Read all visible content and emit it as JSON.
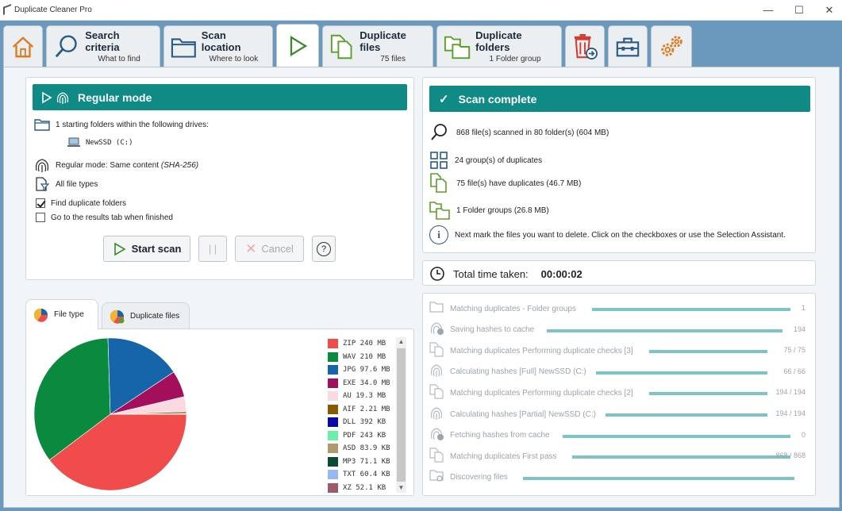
{
  "window": {
    "title": "Duplicate Cleaner Pro",
    "minimize": "—",
    "maximize": "☐",
    "close": "✕"
  },
  "tabs": [
    {
      "id": "home",
      "icon": "home-icon"
    },
    {
      "id": "search",
      "label": "Search criteria",
      "sub": "What to find",
      "icon": "magnifier-icon"
    },
    {
      "id": "location",
      "label": "Scan location",
      "sub": "Where to look",
      "icon": "folder-icon"
    },
    {
      "id": "scan",
      "icon": "play-icon",
      "active": true
    },
    {
      "id": "dupfiles",
      "label": "Duplicate files",
      "sub": "75 files",
      "icon": "duplicate-files-icon"
    },
    {
      "id": "dupfolders",
      "label": "Duplicate folders",
      "sub": "1 Folder group",
      "icon": "duplicate-folders-icon"
    },
    {
      "id": "remove",
      "icon": "trash-export-icon"
    },
    {
      "id": "toolbox",
      "icon": "toolbox-icon"
    },
    {
      "id": "settings",
      "icon": "gears-icon"
    }
  ],
  "mode": {
    "header": "Regular mode",
    "folders_line": "1 starting folders within the following drives:",
    "drive": "NewSSD (C:)",
    "mode_line_a": "Regular mode: Same content ",
    "mode_line_b": "(SHA-256)",
    "file_types": "All file types",
    "find_folders": "Find duplicate folders",
    "find_folders_checked": true,
    "goto_results": "Go to the results tab when finished",
    "goto_results_checked": false,
    "start_label": "Start scan",
    "pause_label": "| |",
    "cancel_label": "Cancel",
    "help_label": "?"
  },
  "complete": {
    "header": "Scan complete",
    "scanned": "868 file(s) scanned in 80 folder(s) (604 MB)",
    "groups": "24 group(s) of duplicates",
    "have_dups": "75 file(s) have duplicates (46.7 MB)",
    "folder_groups": "1 Folder groups (26.8 MB)",
    "next": "Next mark the files you want to delete. Click on the checkboxes or use the Selection Assistant."
  },
  "time": {
    "label": "Total time taken:",
    "value": "00:00:02"
  },
  "progress": [
    {
      "label": "Matching duplicates - Folder groups",
      "count": "1",
      "icon": "folder-icon",
      "fill": 1.0
    },
    {
      "label": "Saving hashes to cache",
      "count": "194",
      "icon": "fingerprint-save-icon",
      "fill": 1.0
    },
    {
      "label": "Matching duplicates Performing duplicate checks [3]",
      "count": "75 / 75",
      "icon": "duplicate-files-icon",
      "fill": 1.0
    },
    {
      "label": "Calculating hashes [Full] NewSSD (C:)",
      "count": "66 / 66",
      "icon": "fingerprint-icon",
      "fill": 1.0
    },
    {
      "label": "Matching duplicates Performing duplicate checks [2]",
      "count": "194 / 194",
      "icon": "duplicate-files-icon",
      "fill": 1.0
    },
    {
      "label": "Calculating hashes [Partial] NewSSD (C:)",
      "count": "194 / 194",
      "icon": "fingerprint-icon",
      "fill": 1.0
    },
    {
      "label": "Fetching hashes from cache",
      "count": "0",
      "icon": "fingerprint-fetch-icon",
      "fill": 1.0
    },
    {
      "label": "Matching duplicates First pass",
      "count": "868 / 868",
      "icon": "duplicate-files-icon",
      "fill": 1.0
    },
    {
      "label": "Discovering files",
      "count": "",
      "icon": "folder-search-icon",
      "fill": 1.0
    }
  ],
  "chart_tabs": [
    {
      "label": "File type",
      "active": true
    },
    {
      "label": "Duplicate files",
      "active": false
    }
  ],
  "chart_data": {
    "type": "pie",
    "slices": [
      {
        "label": "ZIP 240 MB",
        "value": 240,
        "color": "#f04c4c"
      },
      {
        "label": "WAV 210 MB",
        "value": 210,
        "color": "#0a8a3e"
      },
      {
        "label": "JPG 97.6 MB",
        "value": 97.6,
        "color": "#1565a8"
      },
      {
        "label": "EXE 34.0 MB",
        "value": 34.0,
        "color": "#a30f5a"
      },
      {
        "label": "AU 19.3 MB",
        "value": 19.3,
        "color": "#fbd9e3"
      },
      {
        "label": "AIF 2.21 MB",
        "value": 2.21,
        "color": "#8b5a00"
      },
      {
        "label": "DLL 392 KB",
        "value": 0.392,
        "color": "#0a0aa8"
      },
      {
        "label": "PDF 243 KB",
        "value": 0.243,
        "color": "#6af0a8"
      },
      {
        "label": "ASD 83.9 KB",
        "value": 0.0839,
        "color": "#b0996a"
      },
      {
        "label": "MP3 71.1 KB",
        "value": 0.0711,
        "color": "#0b4a34"
      },
      {
        "label": "TXT 60.4 KB",
        "value": 0.0604,
        "color": "#9ab8f0"
      },
      {
        "label": "XZ 52.1 KB",
        "value": 0.0521,
        "color": "#a0586a"
      }
    ]
  }
}
